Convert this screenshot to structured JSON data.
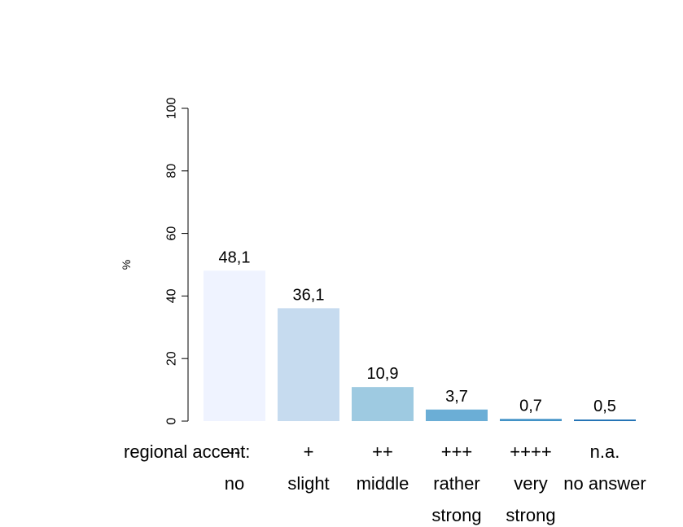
{
  "chart_data": {
    "type": "bar",
    "categories": [
      "--",
      "+",
      "++",
      "+++",
      "++++",
      "n.a."
    ],
    "category_descriptions": [
      "no",
      "slight",
      "middle",
      "rather strong",
      "very strong",
      "no answer"
    ],
    "values": [
      48.1,
      36.1,
      10.9,
      3.7,
      0.7,
      0.5
    ],
    "value_labels": [
      "48,1",
      "36,1",
      "10,9",
      "3,7",
      "0,7",
      "0,5"
    ],
    "row_label": "regional accent:",
    "ylabel": "%",
    "ylim": [
      0,
      100
    ],
    "yticks": [
      0,
      20,
      40,
      60,
      80,
      100
    ],
    "colors": [
      "#eff3ff",
      "#c6dbef",
      "#9ecae1",
      "#6baed6",
      "#4292c6",
      "#2171b5"
    ],
    "grid": false
  }
}
